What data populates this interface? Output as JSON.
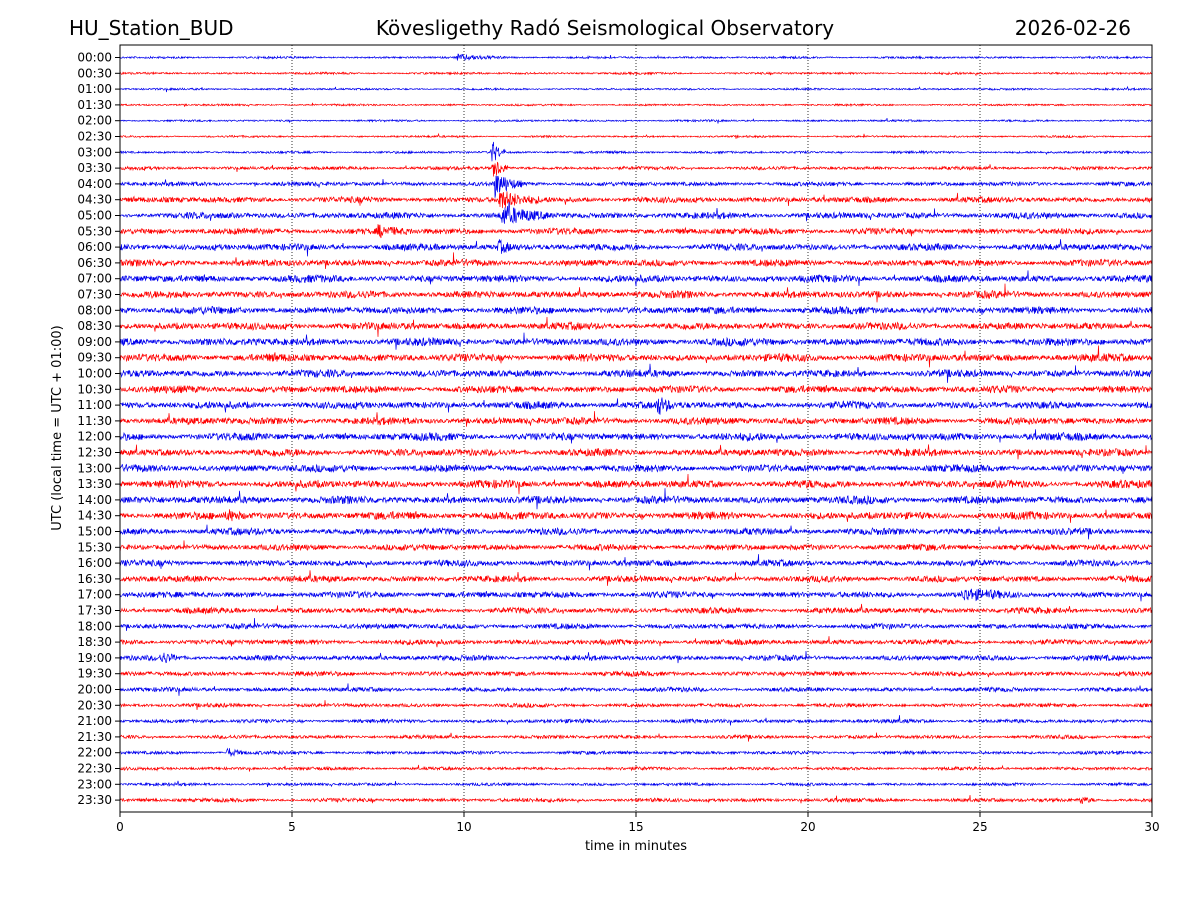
{
  "header": {
    "station": "HU_Station_BUD",
    "observatory": "Kövesligethy Radó Seismological Observatory",
    "date": "2026-02-26"
  },
  "chart_data": {
    "type": "helicorder",
    "title": "Kövesligethy Radó Seismological Observatory",
    "xlabel": "time in minutes",
    "ylabel": "UTC (local time = UTC + 01:00)",
    "xlim": [
      0,
      30
    ],
    "x_ticks": [
      0,
      5,
      10,
      15,
      20,
      25,
      30
    ],
    "x_tick_labels": [
      "0",
      "5",
      "10",
      "15",
      "20",
      "25",
      "30"
    ],
    "grid": "vertical dotted lines at x ticks",
    "colors": [
      "#0000ee",
      "#ff0000"
    ],
    "traces": [
      {
        "label": "00:00",
        "noise": 0.9
      },
      {
        "label": "00:30",
        "noise": 0.9
      },
      {
        "label": "01:00",
        "noise": 0.8
      },
      {
        "label": "01:30",
        "noise": 0.8
      },
      {
        "label": "02:00",
        "noise": 0.8
      },
      {
        "label": "02:30",
        "noise": 0.8
      },
      {
        "label": "03:00",
        "noise": 1.0
      },
      {
        "label": "03:30",
        "noise": 1.4
      },
      {
        "label": "04:00",
        "noise": 1.8
      },
      {
        "label": "04:30",
        "noise": 2.4
      },
      {
        "label": "05:00",
        "noise": 2.6
      },
      {
        "label": "05:30",
        "noise": 2.6
      },
      {
        "label": "06:00",
        "noise": 2.8
      },
      {
        "label": "06:30",
        "noise": 2.8
      },
      {
        "label": "07:00",
        "noise": 3.0
      },
      {
        "label": "07:30",
        "noise": 3.0
      },
      {
        "label": "08:00",
        "noise": 3.0
      },
      {
        "label": "08:30",
        "noise": 3.0
      },
      {
        "label": "09:00",
        "noise": 3.2
      },
      {
        "label": "09:30",
        "noise": 3.2
      },
      {
        "label": "10:00",
        "noise": 3.0
      },
      {
        "label": "10:30",
        "noise": 3.0
      },
      {
        "label": "11:00",
        "noise": 3.0
      },
      {
        "label": "11:30",
        "noise": 3.0
      },
      {
        "label": "12:00",
        "noise": 3.2
      },
      {
        "label": "12:30",
        "noise": 3.0
      },
      {
        "label": "13:00",
        "noise": 3.0
      },
      {
        "label": "13:30",
        "noise": 3.2
      },
      {
        "label": "14:00",
        "noise": 3.2
      },
      {
        "label": "14:30",
        "noise": 3.2
      },
      {
        "label": "15:00",
        "noise": 2.8
      },
      {
        "label": "15:30",
        "noise": 2.6
      },
      {
        "label": "16:00",
        "noise": 2.6
      },
      {
        "label": "16:30",
        "noise": 2.6
      },
      {
        "label": "17:00",
        "noise": 2.6
      },
      {
        "label": "17:30",
        "noise": 2.4
      },
      {
        "label": "18:00",
        "noise": 2.2
      },
      {
        "label": "18:30",
        "noise": 2.2
      },
      {
        "label": "19:00",
        "noise": 2.2
      },
      {
        "label": "19:30",
        "noise": 2.0
      },
      {
        "label": "20:00",
        "noise": 1.8
      },
      {
        "label": "20:30",
        "noise": 1.6
      },
      {
        "label": "21:00",
        "noise": 1.6
      },
      {
        "label": "21:30",
        "noise": 1.5
      },
      {
        "label": "22:00",
        "noise": 1.4
      },
      {
        "label": "22:30",
        "noise": 1.3
      },
      {
        "label": "23:00",
        "noise": 1.2
      },
      {
        "label": "23:30",
        "noise": 1.6
      }
    ],
    "events": [
      {
        "trace": "03:00",
        "minute": 10.8,
        "amplitude": 14,
        "duration": 0.4
      },
      {
        "trace": "03:30",
        "minute": 10.85,
        "amplitude": 12,
        "duration": 0.5
      },
      {
        "trace": "04:00",
        "minute": 10.9,
        "amplitude": 12,
        "duration": 0.8
      },
      {
        "trace": "04:30",
        "minute": 11.0,
        "amplitude": 10,
        "duration": 1.2
      },
      {
        "trace": "05:00",
        "minute": 11.1,
        "amplitude": 9,
        "duration": 1.4
      },
      {
        "trace": "05:30",
        "minute": 7.5,
        "amplitude": 5,
        "duration": 1.0
      },
      {
        "trace": "06:00",
        "minute": 11.0,
        "amplitude": 6,
        "duration": 0.6
      },
      {
        "trace": "00:00",
        "minute": 9.8,
        "amplitude": 3,
        "duration": 1.5
      },
      {
        "trace": "11:00",
        "minute": 15.6,
        "amplitude": 10,
        "duration": 0.5
      },
      {
        "trace": "17:00",
        "minute": 24.5,
        "amplitude": 5,
        "duration": 1.5
      },
      {
        "trace": "19:00",
        "minute": 1.2,
        "amplitude": 5,
        "duration": 0.6
      },
      {
        "trace": "22:00",
        "minute": 3.1,
        "amplitude": 5,
        "duration": 0.6
      },
      {
        "trace": "14:30",
        "minute": 3.1,
        "amplitude": 5,
        "duration": 0.6
      },
      {
        "trace": "23:30",
        "minute": 27.9,
        "amplitude": 4,
        "duration": 0.5
      }
    ]
  }
}
